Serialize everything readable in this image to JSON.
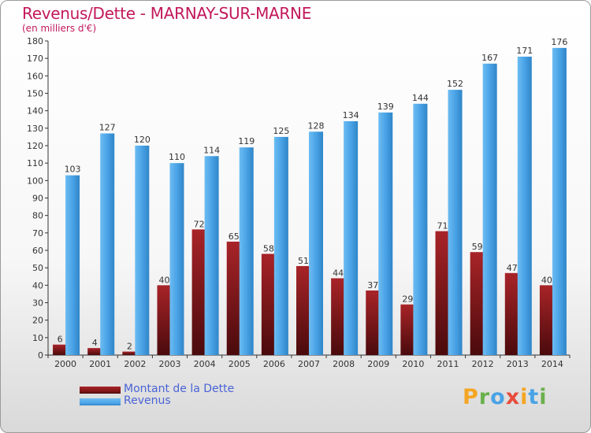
{
  "title": "Revenus/Dette - MARNAY-SUR-MARNE",
  "subtitle": "(en milliers d'€)",
  "colors": {
    "debt": "#7b1416",
    "revenue": "#4aa3e6",
    "title": "#c2185b",
    "legend_text": "#4a63d6"
  },
  "legend": [
    {
      "label": "Montant de la Dette",
      "color_key": "debt"
    },
    {
      "label": "Revenus",
      "color_key": "revenue"
    }
  ],
  "logo": {
    "letters": [
      "P",
      "r",
      "o",
      "x",
      "i",
      "t",
      "i"
    ],
    "colors": [
      "#f5a623",
      "#6ab04c",
      "#4aa3e6",
      "#e74c3c",
      "#f5a623",
      "#4aa3e6",
      "#6ab04c"
    ]
  },
  "chart_data": {
    "type": "bar",
    "categories": [
      "2000",
      "2001",
      "2002",
      "2003",
      "2004",
      "2005",
      "2006",
      "2007",
      "2008",
      "2009",
      "2010",
      "2011",
      "2012",
      "2013",
      "2014"
    ],
    "series": [
      {
        "name": "Montant de la Dette",
        "values": [
          6,
          4,
          2,
          40,
          72,
          65,
          58,
          51,
          44,
          37,
          29,
          71,
          59,
          47,
          40
        ]
      },
      {
        "name": "Revenus",
        "values": [
          103,
          127,
          120,
          110,
          114,
          119,
          125,
          128,
          134,
          139,
          144,
          152,
          167,
          171,
          176
        ]
      }
    ],
    "ylim": [
      0,
      180
    ],
    "yticks": [
      0,
      10,
      20,
      30,
      40,
      50,
      60,
      70,
      80,
      90,
      100,
      110,
      120,
      130,
      140,
      150,
      160,
      170,
      180
    ],
    "grid": false,
    "data_labels": true,
    "legend_position": "bottom-left"
  }
}
